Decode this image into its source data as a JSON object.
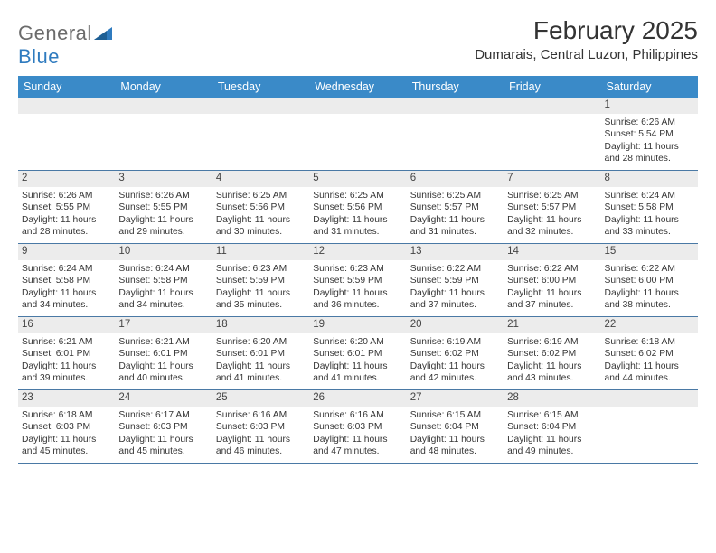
{
  "brand": {
    "word1": "General",
    "word2": "Blue"
  },
  "title": "February 2025",
  "location": "Dumarais, Central Luzon, Philippines",
  "colors": {
    "header_bg": "#3a8ac8",
    "header_text": "#ffffff",
    "band_bg": "#ececec",
    "divider": "#4a79a5",
    "body_text": "#353535",
    "logo_gray": "#6b6b6b",
    "logo_blue": "#2f7bbf"
  },
  "typography": {
    "title_fontsize": 28,
    "location_fontsize": 15,
    "weekday_fontsize": 12.5,
    "daynum_fontsize": 11.5,
    "body_fontsize": 10.3
  },
  "weekdays": [
    "Sunday",
    "Monday",
    "Tuesday",
    "Wednesday",
    "Thursday",
    "Friday",
    "Saturday"
  ],
  "weeks": [
    [
      {
        "n": "",
        "sunrise": "",
        "sunset": "",
        "daylight1": "",
        "daylight2": ""
      },
      {
        "n": "",
        "sunrise": "",
        "sunset": "",
        "daylight1": "",
        "daylight2": ""
      },
      {
        "n": "",
        "sunrise": "",
        "sunset": "",
        "daylight1": "",
        "daylight2": ""
      },
      {
        "n": "",
        "sunrise": "",
        "sunset": "",
        "daylight1": "",
        "daylight2": ""
      },
      {
        "n": "",
        "sunrise": "",
        "sunset": "",
        "daylight1": "",
        "daylight2": ""
      },
      {
        "n": "",
        "sunrise": "",
        "sunset": "",
        "daylight1": "",
        "daylight2": ""
      },
      {
        "n": "1",
        "sunrise": "Sunrise: 6:26 AM",
        "sunset": "Sunset: 5:54 PM",
        "daylight1": "Daylight: 11 hours",
        "daylight2": "and 28 minutes."
      }
    ],
    [
      {
        "n": "2",
        "sunrise": "Sunrise: 6:26 AM",
        "sunset": "Sunset: 5:55 PM",
        "daylight1": "Daylight: 11 hours",
        "daylight2": "and 28 minutes."
      },
      {
        "n": "3",
        "sunrise": "Sunrise: 6:26 AM",
        "sunset": "Sunset: 5:55 PM",
        "daylight1": "Daylight: 11 hours",
        "daylight2": "and 29 minutes."
      },
      {
        "n": "4",
        "sunrise": "Sunrise: 6:25 AM",
        "sunset": "Sunset: 5:56 PM",
        "daylight1": "Daylight: 11 hours",
        "daylight2": "and 30 minutes."
      },
      {
        "n": "5",
        "sunrise": "Sunrise: 6:25 AM",
        "sunset": "Sunset: 5:56 PM",
        "daylight1": "Daylight: 11 hours",
        "daylight2": "and 31 minutes."
      },
      {
        "n": "6",
        "sunrise": "Sunrise: 6:25 AM",
        "sunset": "Sunset: 5:57 PM",
        "daylight1": "Daylight: 11 hours",
        "daylight2": "and 31 minutes."
      },
      {
        "n": "7",
        "sunrise": "Sunrise: 6:25 AM",
        "sunset": "Sunset: 5:57 PM",
        "daylight1": "Daylight: 11 hours",
        "daylight2": "and 32 minutes."
      },
      {
        "n": "8",
        "sunrise": "Sunrise: 6:24 AM",
        "sunset": "Sunset: 5:58 PM",
        "daylight1": "Daylight: 11 hours",
        "daylight2": "and 33 minutes."
      }
    ],
    [
      {
        "n": "9",
        "sunrise": "Sunrise: 6:24 AM",
        "sunset": "Sunset: 5:58 PM",
        "daylight1": "Daylight: 11 hours",
        "daylight2": "and 34 minutes."
      },
      {
        "n": "10",
        "sunrise": "Sunrise: 6:24 AM",
        "sunset": "Sunset: 5:58 PM",
        "daylight1": "Daylight: 11 hours",
        "daylight2": "and 34 minutes."
      },
      {
        "n": "11",
        "sunrise": "Sunrise: 6:23 AM",
        "sunset": "Sunset: 5:59 PM",
        "daylight1": "Daylight: 11 hours",
        "daylight2": "and 35 minutes."
      },
      {
        "n": "12",
        "sunrise": "Sunrise: 6:23 AM",
        "sunset": "Sunset: 5:59 PM",
        "daylight1": "Daylight: 11 hours",
        "daylight2": "and 36 minutes."
      },
      {
        "n": "13",
        "sunrise": "Sunrise: 6:22 AM",
        "sunset": "Sunset: 5:59 PM",
        "daylight1": "Daylight: 11 hours",
        "daylight2": "and 37 minutes."
      },
      {
        "n": "14",
        "sunrise": "Sunrise: 6:22 AM",
        "sunset": "Sunset: 6:00 PM",
        "daylight1": "Daylight: 11 hours",
        "daylight2": "and 37 minutes."
      },
      {
        "n": "15",
        "sunrise": "Sunrise: 6:22 AM",
        "sunset": "Sunset: 6:00 PM",
        "daylight1": "Daylight: 11 hours",
        "daylight2": "and 38 minutes."
      }
    ],
    [
      {
        "n": "16",
        "sunrise": "Sunrise: 6:21 AM",
        "sunset": "Sunset: 6:01 PM",
        "daylight1": "Daylight: 11 hours",
        "daylight2": "and 39 minutes."
      },
      {
        "n": "17",
        "sunrise": "Sunrise: 6:21 AM",
        "sunset": "Sunset: 6:01 PM",
        "daylight1": "Daylight: 11 hours",
        "daylight2": "and 40 minutes."
      },
      {
        "n": "18",
        "sunrise": "Sunrise: 6:20 AM",
        "sunset": "Sunset: 6:01 PM",
        "daylight1": "Daylight: 11 hours",
        "daylight2": "and 41 minutes."
      },
      {
        "n": "19",
        "sunrise": "Sunrise: 6:20 AM",
        "sunset": "Sunset: 6:01 PM",
        "daylight1": "Daylight: 11 hours",
        "daylight2": "and 41 minutes."
      },
      {
        "n": "20",
        "sunrise": "Sunrise: 6:19 AM",
        "sunset": "Sunset: 6:02 PM",
        "daylight1": "Daylight: 11 hours",
        "daylight2": "and 42 minutes."
      },
      {
        "n": "21",
        "sunrise": "Sunrise: 6:19 AM",
        "sunset": "Sunset: 6:02 PM",
        "daylight1": "Daylight: 11 hours",
        "daylight2": "and 43 minutes."
      },
      {
        "n": "22",
        "sunrise": "Sunrise: 6:18 AM",
        "sunset": "Sunset: 6:02 PM",
        "daylight1": "Daylight: 11 hours",
        "daylight2": "and 44 minutes."
      }
    ],
    [
      {
        "n": "23",
        "sunrise": "Sunrise: 6:18 AM",
        "sunset": "Sunset: 6:03 PM",
        "daylight1": "Daylight: 11 hours",
        "daylight2": "and 45 minutes."
      },
      {
        "n": "24",
        "sunrise": "Sunrise: 6:17 AM",
        "sunset": "Sunset: 6:03 PM",
        "daylight1": "Daylight: 11 hours",
        "daylight2": "and 45 minutes."
      },
      {
        "n": "25",
        "sunrise": "Sunrise: 6:16 AM",
        "sunset": "Sunset: 6:03 PM",
        "daylight1": "Daylight: 11 hours",
        "daylight2": "and 46 minutes."
      },
      {
        "n": "26",
        "sunrise": "Sunrise: 6:16 AM",
        "sunset": "Sunset: 6:03 PM",
        "daylight1": "Daylight: 11 hours",
        "daylight2": "and 47 minutes."
      },
      {
        "n": "27",
        "sunrise": "Sunrise: 6:15 AM",
        "sunset": "Sunset: 6:04 PM",
        "daylight1": "Daylight: 11 hours",
        "daylight2": "and 48 minutes."
      },
      {
        "n": "28",
        "sunrise": "Sunrise: 6:15 AM",
        "sunset": "Sunset: 6:04 PM",
        "daylight1": "Daylight: 11 hours",
        "daylight2": "and 49 minutes."
      },
      {
        "n": "",
        "sunrise": "",
        "sunset": "",
        "daylight1": "",
        "daylight2": ""
      }
    ]
  ]
}
